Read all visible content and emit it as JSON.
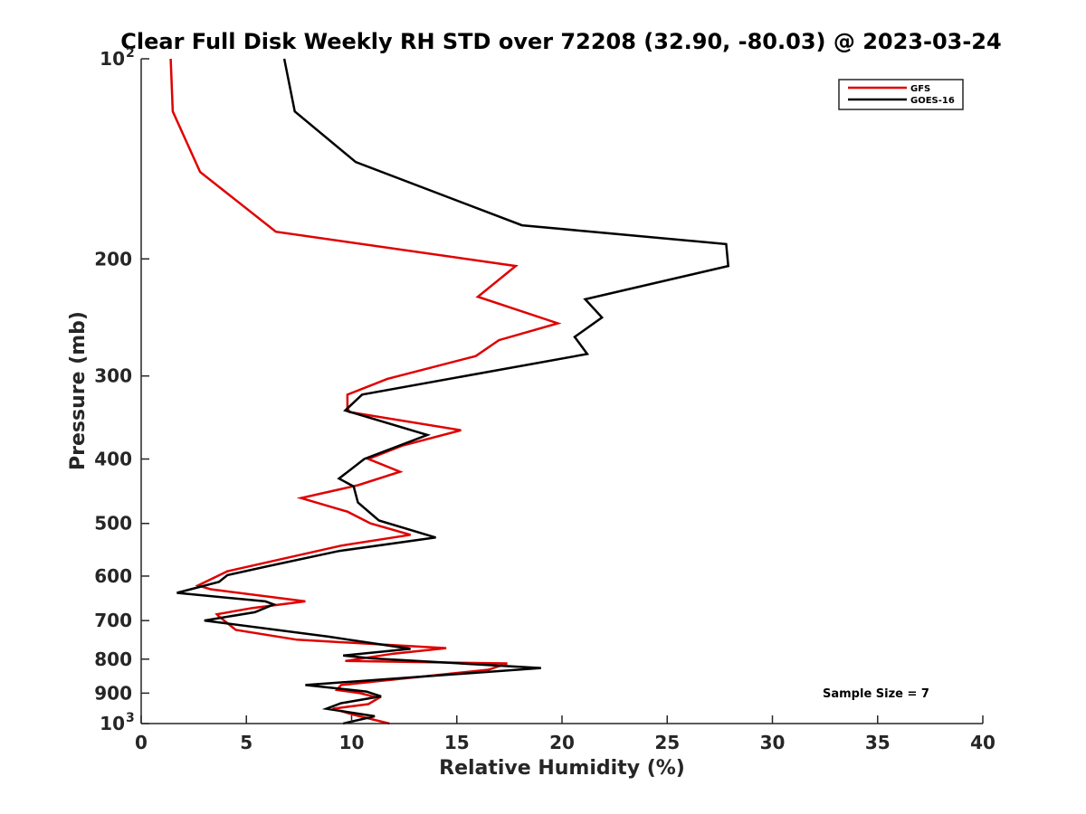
{
  "chart_data": {
    "type": "line",
    "title": "Clear Full Disk Weekly RH STD over 72208 (32.90, -80.03) @ 2023-03-24",
    "xlabel": "Relative Humidity (%)",
    "ylabel": "Pressure (mb)",
    "xlim": [
      0,
      40
    ],
    "ylim": [
      100,
      1000
    ],
    "y_scale": "log",
    "y_reversed": true,
    "grid": false,
    "legend_position": "top-right",
    "x_ticks": [
      "0",
      "5",
      "10",
      "15",
      "20",
      "25",
      "30",
      "35",
      "40"
    ],
    "y_ticks": [
      {
        "p": 100,
        "base": "10",
        "exp": "2"
      },
      {
        "p": 200,
        "base": "200",
        "exp": ""
      },
      {
        "p": 300,
        "base": "300",
        "exp": ""
      },
      {
        "p": 400,
        "base": "400",
        "exp": ""
      },
      {
        "p": 500,
        "base": "500",
        "exp": ""
      },
      {
        "p": 600,
        "base": "600",
        "exp": ""
      },
      {
        "p": 700,
        "base": "700",
        "exp": ""
      },
      {
        "p": 800,
        "base": "800",
        "exp": ""
      },
      {
        "p": 900,
        "base": "900",
        "exp": ""
      },
      {
        "p": 1000,
        "base": "10",
        "exp": "3"
      }
    ],
    "annotation": "Sample Size = 7",
    "series": [
      {
        "name": "GFS",
        "color": "#e00000",
        "points": [
          [
            1.4,
            100
          ],
          [
            1.5,
            120
          ],
          [
            2.8,
            148
          ],
          [
            6.4,
            182
          ],
          [
            17.8,
            205
          ],
          [
            16.0,
            228
          ],
          [
            19.8,
            250
          ],
          [
            17.0,
            265
          ],
          [
            15.9,
            280
          ],
          [
            11.7,
            303
          ],
          [
            9.8,
            320
          ],
          [
            9.8,
            335
          ],
          [
            9.9,
            340
          ],
          [
            15.2,
            362
          ],
          [
            12.4,
            382
          ],
          [
            10.8,
            400
          ],
          [
            12.3,
            418
          ],
          [
            10.3,
            438
          ],
          [
            7.6,
            458
          ],
          [
            9.8,
            480
          ],
          [
            10.9,
            500
          ],
          [
            12.8,
            520
          ],
          [
            9.5,
            540
          ],
          [
            4.1,
            590
          ],
          [
            2.7,
            620
          ],
          [
            3.3,
            628
          ],
          [
            7.8,
            655
          ],
          [
            5.3,
            670
          ],
          [
            3.6,
            685
          ],
          [
            3.7,
            690
          ],
          [
            4.5,
            723
          ],
          [
            7.4,
            748
          ],
          [
            14.5,
            770
          ],
          [
            12.0,
            785
          ],
          [
            9.7,
            805
          ],
          [
            17.4,
            812
          ],
          [
            16.5,
            830
          ],
          [
            9.5,
            875
          ],
          [
            9.3,
            890
          ],
          [
            10.4,
            900
          ],
          [
            11.3,
            915
          ],
          [
            10.8,
            935
          ],
          [
            9.1,
            950
          ],
          [
            10.1,
            970
          ],
          [
            11.8,
            1000
          ]
        ]
      },
      {
        "name": "GOES-16",
        "color": "#000000",
        "points": [
          [
            6.8,
            100
          ],
          [
            7.3,
            120
          ],
          [
            10.2,
            143
          ],
          [
            18.1,
            178
          ],
          [
            27.8,
            190
          ],
          [
            27.9,
            205
          ],
          [
            21.1,
            230
          ],
          [
            21.9,
            245
          ],
          [
            20.6,
            262
          ],
          [
            21.2,
            278
          ],
          [
            10.5,
            320
          ],
          [
            9.7,
            338
          ],
          [
            13.6,
            368
          ],
          [
            10.6,
            400
          ],
          [
            9.4,
            428
          ],
          [
            10.1,
            440
          ],
          [
            10.3,
            465
          ],
          [
            11.3,
            495
          ],
          [
            14.0,
            525
          ],
          [
            9.4,
            550
          ],
          [
            6.0,
            580
          ],
          [
            4.1,
            598
          ],
          [
            3.7,
            612
          ],
          [
            1.7,
            636
          ],
          [
            5.9,
            655
          ],
          [
            6.3,
            662
          ],
          [
            5.4,
            680
          ],
          [
            3.0,
            700
          ],
          [
            8.9,
            740
          ],
          [
            12.8,
            772
          ],
          [
            9.6,
            790
          ],
          [
            11.0,
            798
          ],
          [
            19.0,
            825
          ],
          [
            7.8,
            875
          ],
          [
            10.7,
            895
          ],
          [
            11.4,
            910
          ],
          [
            9.5,
            932
          ],
          [
            8.8,
            950
          ],
          [
            11.1,
            975
          ],
          [
            9.6,
            1000
          ]
        ]
      }
    ]
  }
}
